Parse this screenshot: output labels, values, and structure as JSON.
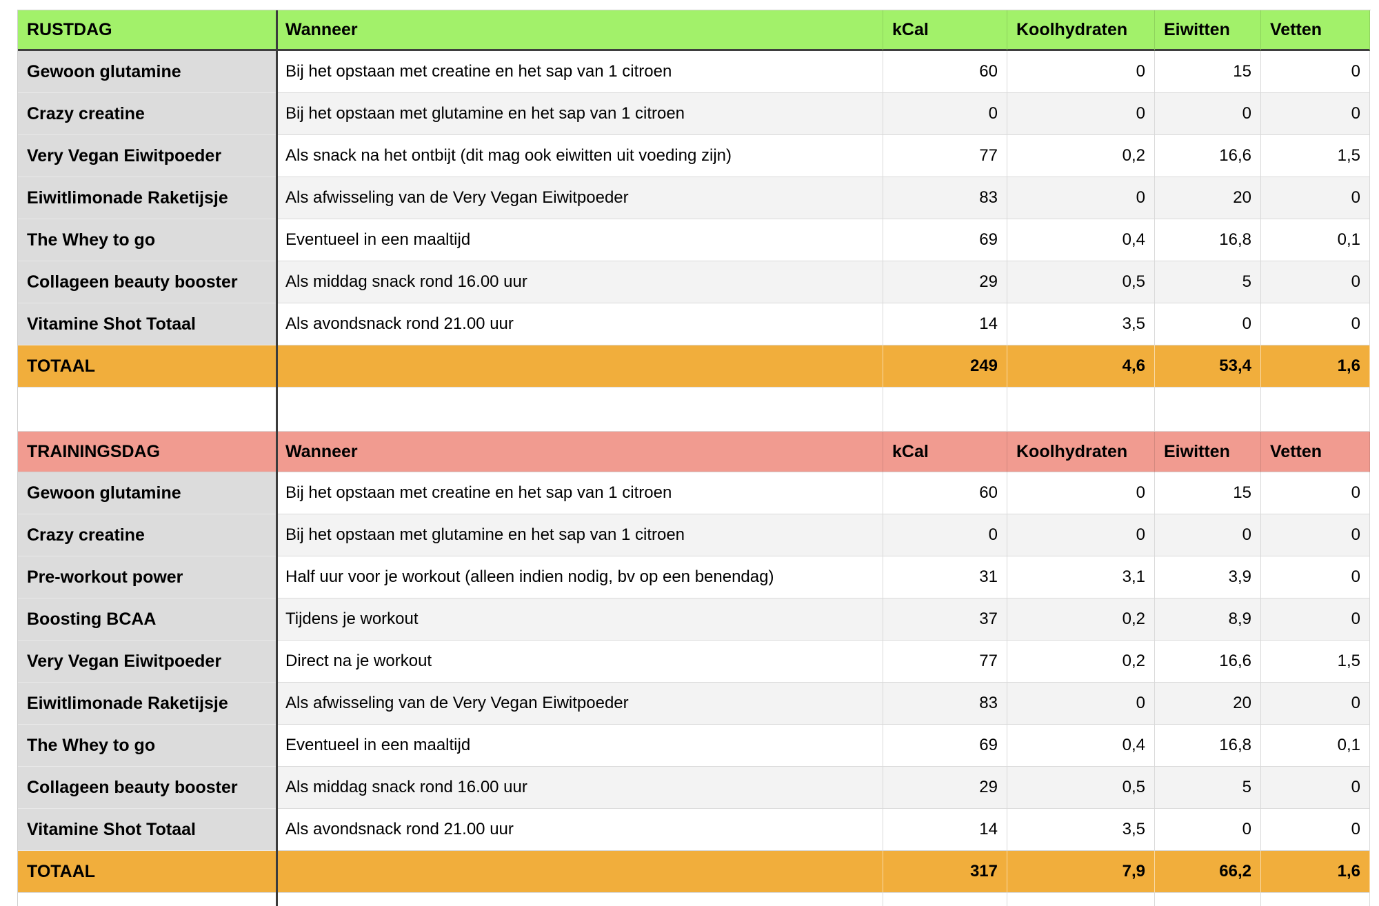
{
  "colors": {
    "rustdag_header": "#A2F16A",
    "trainingsdag_header": "#F19B90",
    "total_row": "#F1AE3C",
    "name_column": "#DCDCDC",
    "row_white": "#FFFFFF",
    "row_alt": "#F3F3F3"
  },
  "columns": {
    "wanneer": "Wanneer",
    "nutrients": [
      "kCal",
      "Koolhydraten",
      "Eiwitten",
      "Vetten"
    ]
  },
  "sections": [
    {
      "id": "rustdag",
      "title": "RUSTDAG",
      "rows": [
        {
          "name": "Gewoon glutamine",
          "wanneer": "Bij het opstaan met creatine en het sap van 1 citroen",
          "kcal": "60",
          "koolhydraten": "0",
          "eiwitten": "15",
          "vetten": "0"
        },
        {
          "name": "Crazy creatine",
          "wanneer": "Bij het opstaan met glutamine en het sap van 1 citroen",
          "kcal": "0",
          "koolhydraten": "0",
          "eiwitten": "0",
          "vetten": "0"
        },
        {
          "name": "Very Vegan Eiwitpoeder",
          "wanneer": "Als snack na het ontbijt (dit mag ook eiwitten uit voeding zijn)",
          "kcal": "77",
          "koolhydraten": "0,2",
          "eiwitten": "16,6",
          "vetten": "1,5"
        },
        {
          "name": "Eiwitlimonade Raketijsje",
          "wanneer": "Als afwisseling van de Very Vegan Eiwitpoeder",
          "kcal": "83",
          "koolhydraten": "0",
          "eiwitten": "20",
          "vetten": "0"
        },
        {
          "name": "The Whey to go",
          "wanneer": "Eventueel in een maaltijd",
          "kcal": "69",
          "koolhydraten": "0,4",
          "eiwitten": "16,8",
          "vetten": "0,1"
        },
        {
          "name": "Collageen beauty booster",
          "wanneer": "Als middag snack rond 16.00 uur",
          "kcal": "29",
          "koolhydraten": "0,5",
          "eiwitten": "5",
          "vetten": "0"
        },
        {
          "name": "Vitamine Shot Totaal",
          "wanneer": "Als avondsnack rond 21.00 uur",
          "kcal": "14",
          "koolhydraten": "3,5",
          "eiwitten": "0",
          "vetten": "0"
        }
      ],
      "total": {
        "label": "TOTAAL",
        "kcal": "249",
        "koolhydraten": "4,6",
        "eiwitten": "53,4",
        "vetten": "1,6"
      }
    },
    {
      "id": "trainingsdag",
      "title": "TRAININGSDAG",
      "rows": [
        {
          "name": "Gewoon glutamine",
          "wanneer": "Bij het opstaan met creatine en het sap van 1 citroen",
          "kcal": "60",
          "koolhydraten": "0",
          "eiwitten": "15",
          "vetten": "0"
        },
        {
          "name": "Crazy creatine",
          "wanneer": "Bij het opstaan met glutamine en het sap van 1 citroen",
          "kcal": "0",
          "koolhydraten": "0",
          "eiwitten": "0",
          "vetten": "0"
        },
        {
          "name": "Pre-workout power",
          "wanneer": "Half uur voor je workout (alleen indien nodig, bv op een benendag)",
          "kcal": "31",
          "koolhydraten": "3,1",
          "eiwitten": "3,9",
          "vetten": "0"
        },
        {
          "name": "Boosting BCAA",
          "wanneer": "Tijdens je workout",
          "kcal": "37",
          "koolhydraten": "0,2",
          "eiwitten": "8,9",
          "vetten": "0"
        },
        {
          "name": "Very Vegan Eiwitpoeder",
          "wanneer": "Direct na je workout",
          "kcal": "77",
          "koolhydraten": "0,2",
          "eiwitten": "16,6",
          "vetten": "1,5"
        },
        {
          "name": "Eiwitlimonade Raketijsje",
          "wanneer": "Als afwisseling van de Very Vegan Eiwitpoeder",
          "kcal": "83",
          "koolhydraten": "0",
          "eiwitten": "20",
          "vetten": "0"
        },
        {
          "name": "The Whey to go",
          "wanneer": "Eventueel in een maaltijd",
          "kcal": "69",
          "koolhydraten": "0,4",
          "eiwitten": "16,8",
          "vetten": "0,1"
        },
        {
          "name": "Collageen beauty booster",
          "wanneer": "Als middag snack rond 16.00 uur",
          "kcal": "29",
          "koolhydraten": "0,5",
          "eiwitten": "5",
          "vetten": "0"
        },
        {
          "name": "Vitamine Shot Totaal",
          "wanneer": "Als avondsnack rond 21.00 uur",
          "kcal": "14",
          "koolhydraten": "3,5",
          "eiwitten": "0",
          "vetten": "0"
        }
      ],
      "total": {
        "label": "TOTAAL",
        "kcal": "317",
        "koolhydraten": "7,9",
        "eiwitten": "66,2",
        "vetten": "1,6"
      }
    }
  ]
}
